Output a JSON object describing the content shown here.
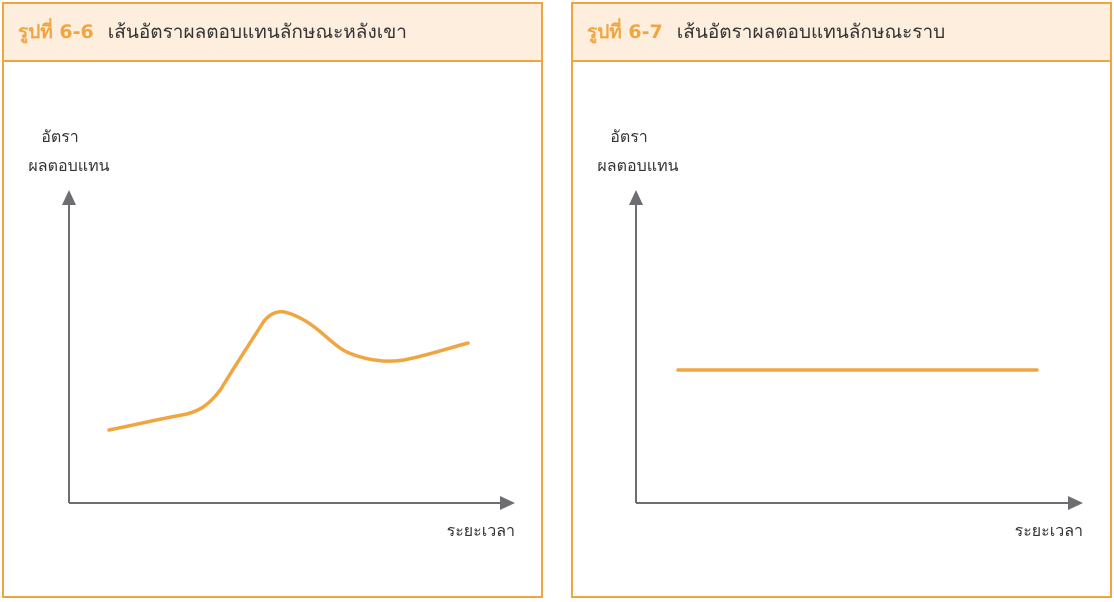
{
  "figures": [
    {
      "number": "รูปที่ 6-6",
      "title": "เส้นอัตราผลตอบแทนลักษณะหลังเขา",
      "y_label_line1": "อัตรา",
      "y_label_line2": "ผลตอบแทน",
      "x_label": "ระยะเวลา",
      "curve_shape": "humped"
    },
    {
      "number": "รูปที่ 6-7",
      "title": "เส้นอัตราผลตอบแทนลักษณะราบ",
      "y_label_line1": "อัตรา",
      "y_label_line2": "ผลตอบแทน",
      "x_label": "ระยะเวลา",
      "curve_shape": "flat"
    }
  ],
  "colors": {
    "accent": "#f0a541",
    "header_bg": "#fdeedd",
    "axis": "#6d6e71",
    "text": "#333333"
  }
}
